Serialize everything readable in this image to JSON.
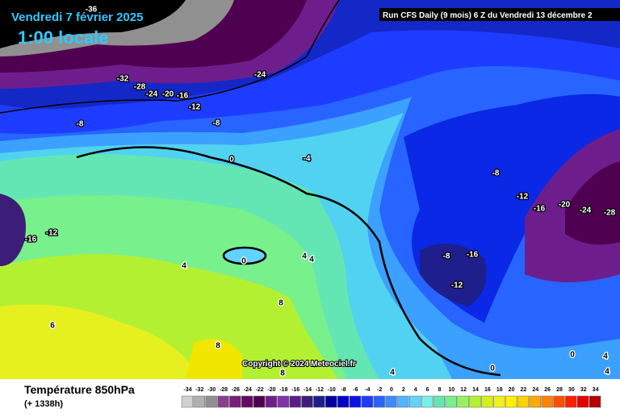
{
  "header": {
    "date": "Vendredi 7 février 2025",
    "time": "1:00 locale",
    "run": "Run CFS Daily (9 mois) 6 Z du Vendredi 13 décembre 2"
  },
  "map": {
    "contour_labels": [
      "-36",
      "-32",
      "-28",
      "-24",
      "-20",
      "-16",
      "-12",
      "-24",
      "-8",
      "-8",
      "-4",
      "0",
      "-16",
      "-12",
      "4",
      "0",
      "4",
      "4",
      "8",
      "6",
      "8",
      "8",
      "4",
      "0",
      "0",
      "4",
      "4",
      "-8",
      "-12",
      "-16",
      "-20",
      "-24",
      "-28",
      "-8",
      "-16",
      "-12"
    ],
    "copyright": "Copyright © 2024 Meteociel.fr"
  },
  "footer": {
    "title": "Température 850hPa",
    "lead_time": "(+ 1338h)"
  },
  "legend": {
    "labels": [
      -34,
      -32,
      -30,
      -28,
      -26,
      -24,
      -22,
      -20,
      -18,
      -16,
      -14,
      -12,
      -10,
      -8,
      -6,
      -4,
      -2,
      0,
      2,
      4,
      6,
      8,
      10,
      12,
      14,
      16,
      18,
      20,
      22,
      24,
      26,
      28,
      30,
      32,
      34
    ],
    "colors": [
      "#d0d0d0",
      "#b0b0b0",
      "#909090",
      "#8c3c8c",
      "#781e78",
      "#640a64",
      "#500050",
      "#6e1e8c",
      "#8232aa",
      "#5a1e8c",
      "#3c1e78",
      "#1e1e8c",
      "#0000a0",
      "#0000c8",
      "#0a14e6",
      "#1e3cff",
      "#2864ff",
      "#3c8cff",
      "#50b4ff",
      "#64d2ff",
      "#78f0e6",
      "#64e6b4",
      "#78f08c",
      "#96f064",
      "#b4f032",
      "#d2f01e",
      "#f0f01e",
      "#fff000",
      "#ffd200",
      "#ffaa00",
      "#ff8200",
      "#ff5000",
      "#ff1e00",
      "#e60000",
      "#b40000"
    ]
  }
}
